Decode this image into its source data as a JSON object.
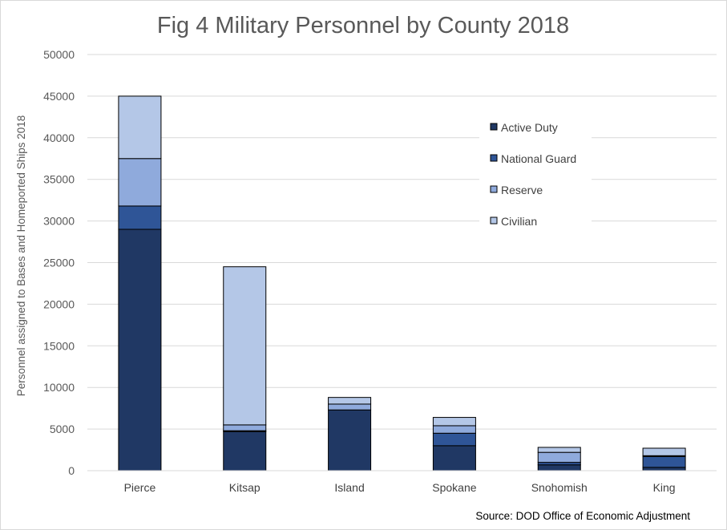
{
  "chart_data": {
    "type": "bar",
    "stacked": true,
    "title": "Fig 4 Military Personnel by County 2018",
    "xlabel": "",
    "ylabel": "Personnel assigned to Bases and Homeported  Ships 2018",
    "ylim": [
      0,
      50000
    ],
    "yticks": [
      0,
      5000,
      10000,
      15000,
      20000,
      25000,
      30000,
      35000,
      40000,
      45000,
      50000
    ],
    "grid": true,
    "legend_position": "right",
    "categories": [
      "Pierce",
      "Kitsap",
      "Island",
      "Spokane",
      "Snohomish",
      "King"
    ],
    "series": [
      {
        "name": "Active Duty",
        "color": "#203864",
        "values": [
          29000,
          4700,
          7300,
          3000,
          700,
          400
        ]
      },
      {
        "name": "National Guard",
        "color": "#2f5597",
        "values": [
          2800,
          100,
          0,
          1500,
          300,
          1300
        ]
      },
      {
        "name": "Reserve",
        "color": "#8faadc",
        "values": [
          5700,
          700,
          700,
          900,
          1200,
          100
        ]
      },
      {
        "name": "Civilian",
        "color": "#b4c7e7",
        "values": [
          7500,
          19000,
          800,
          1000,
          600,
          900
        ]
      }
    ],
    "source": "Source: DOD Office of Economic Adjustment"
  }
}
